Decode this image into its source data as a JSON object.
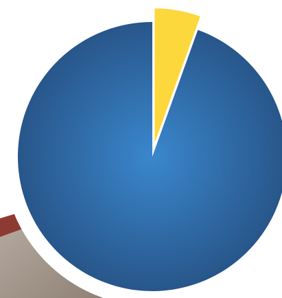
{
  "chart_data": {
    "type": "pie",
    "start_angle_deg": 0,
    "direction": "clockwise",
    "slices": [
      {
        "value": 5.5,
        "color": "#fcd83c",
        "exploded": true
      },
      {
        "value": 94.5,
        "color": "#2f6eac",
        "exploded": false
      }
    ],
    "legend": "none"
  },
  "colors": {
    "plate": "#ffffff",
    "pie_center": "#3a87cd",
    "pie_edge": "#28568a",
    "floor": "#a39489",
    "wall": "#8d3a32"
  }
}
